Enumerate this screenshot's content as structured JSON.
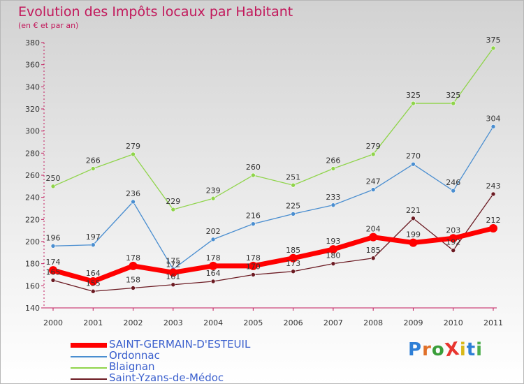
{
  "title": "Evolution des Impôts locaux par Habitant",
  "subtitle": "(en € et par an)",
  "logo": {
    "text": "ProXiti",
    "letter_colors": [
      "#2e7fd6",
      "#e0702a",
      "#3a9e3a",
      "#e8352f",
      "#d9b81a",
      "#2e7fd6",
      "#4cae4c"
    ]
  },
  "chart_data": {
    "type": "line",
    "x": [
      "2000",
      "2001",
      "2002",
      "2003",
      "2004",
      "2005",
      "2006",
      "2007",
      "2008",
      "2009",
      "2010",
      "2011"
    ],
    "ylim": [
      140,
      380
    ],
    "yticks": [
      140,
      160,
      180,
      200,
      220,
      240,
      260,
      280,
      300,
      320,
      340,
      360,
      380
    ],
    "grid": false,
    "legend_position": "bottom-left",
    "series": [
      {
        "name": "Saint-Yzans-de-Médoc",
        "color": "#6b1a22",
        "labels": false,
        "values": [
          165,
          155,
          158,
          161,
          164,
          170,
          173,
          180,
          185,
          221,
          192,
          243
        ]
      },
      {
        "name": "Blaignan",
        "color": "#8fd44a",
        "labels": true,
        "values": [
          250,
          266,
          279,
          229,
          239,
          260,
          251,
          266,
          279,
          325,
          325,
          375
        ]
      },
      {
        "name": "Ordonnac",
        "color": "#4a8ed0",
        "labels": true,
        "values": [
          196,
          197,
          236,
          175,
          202,
          216,
          225,
          233,
          247,
          270,
          246,
          304
        ]
      },
      {
        "name": "SAINT-GERMAIN-D'ESTEUIL",
        "color": "#ff0000",
        "labels": true,
        "values": [
          174,
          164,
          178,
          172,
          178,
          178,
          185,
          193,
          204,
          199,
          203,
          212
        ]
      }
    ],
    "extra_labels": [
      {
        "text": "165",
        "x": "2000",
        "y": 165
      },
      {
        "text": "155",
        "x": "2001",
        "y": 155
      },
      {
        "text": "158",
        "x": "2002",
        "y": 158
      },
      {
        "text": "161",
        "x": "2003",
        "y": 161
      },
      {
        "text": "164",
        "x": "2004",
        "y": 164
      },
      {
        "text": "170",
        "x": "2005",
        "y": 170
      },
      {
        "text": "173",
        "x": "2006",
        "y": 173
      },
      {
        "text": "180",
        "x": "2007",
        "y": 180
      },
      {
        "text": "185",
        "x": "2008",
        "y": 185
      },
      {
        "text": "221",
        "x": "2009",
        "y": 221
      },
      {
        "text": "192",
        "x": "2010",
        "y": 192
      },
      {
        "text": "243",
        "x": "2011",
        "y": 243
      }
    ],
    "legend": [
      {
        "label": "SAINT-GERMAIN-D'ESTEUIL",
        "color": "#ff0000",
        "thick": true
      },
      {
        "label": "Ordonnac",
        "color": "#4a8ed0",
        "thick": false
      },
      {
        "label": "Blaignan",
        "color": "#8fd44a",
        "thick": false
      },
      {
        "label": "Saint-Yzans-de-Médoc",
        "color": "#6b1a22",
        "thick": false
      }
    ],
    "legend_text_color": "#3a5fcd"
  }
}
